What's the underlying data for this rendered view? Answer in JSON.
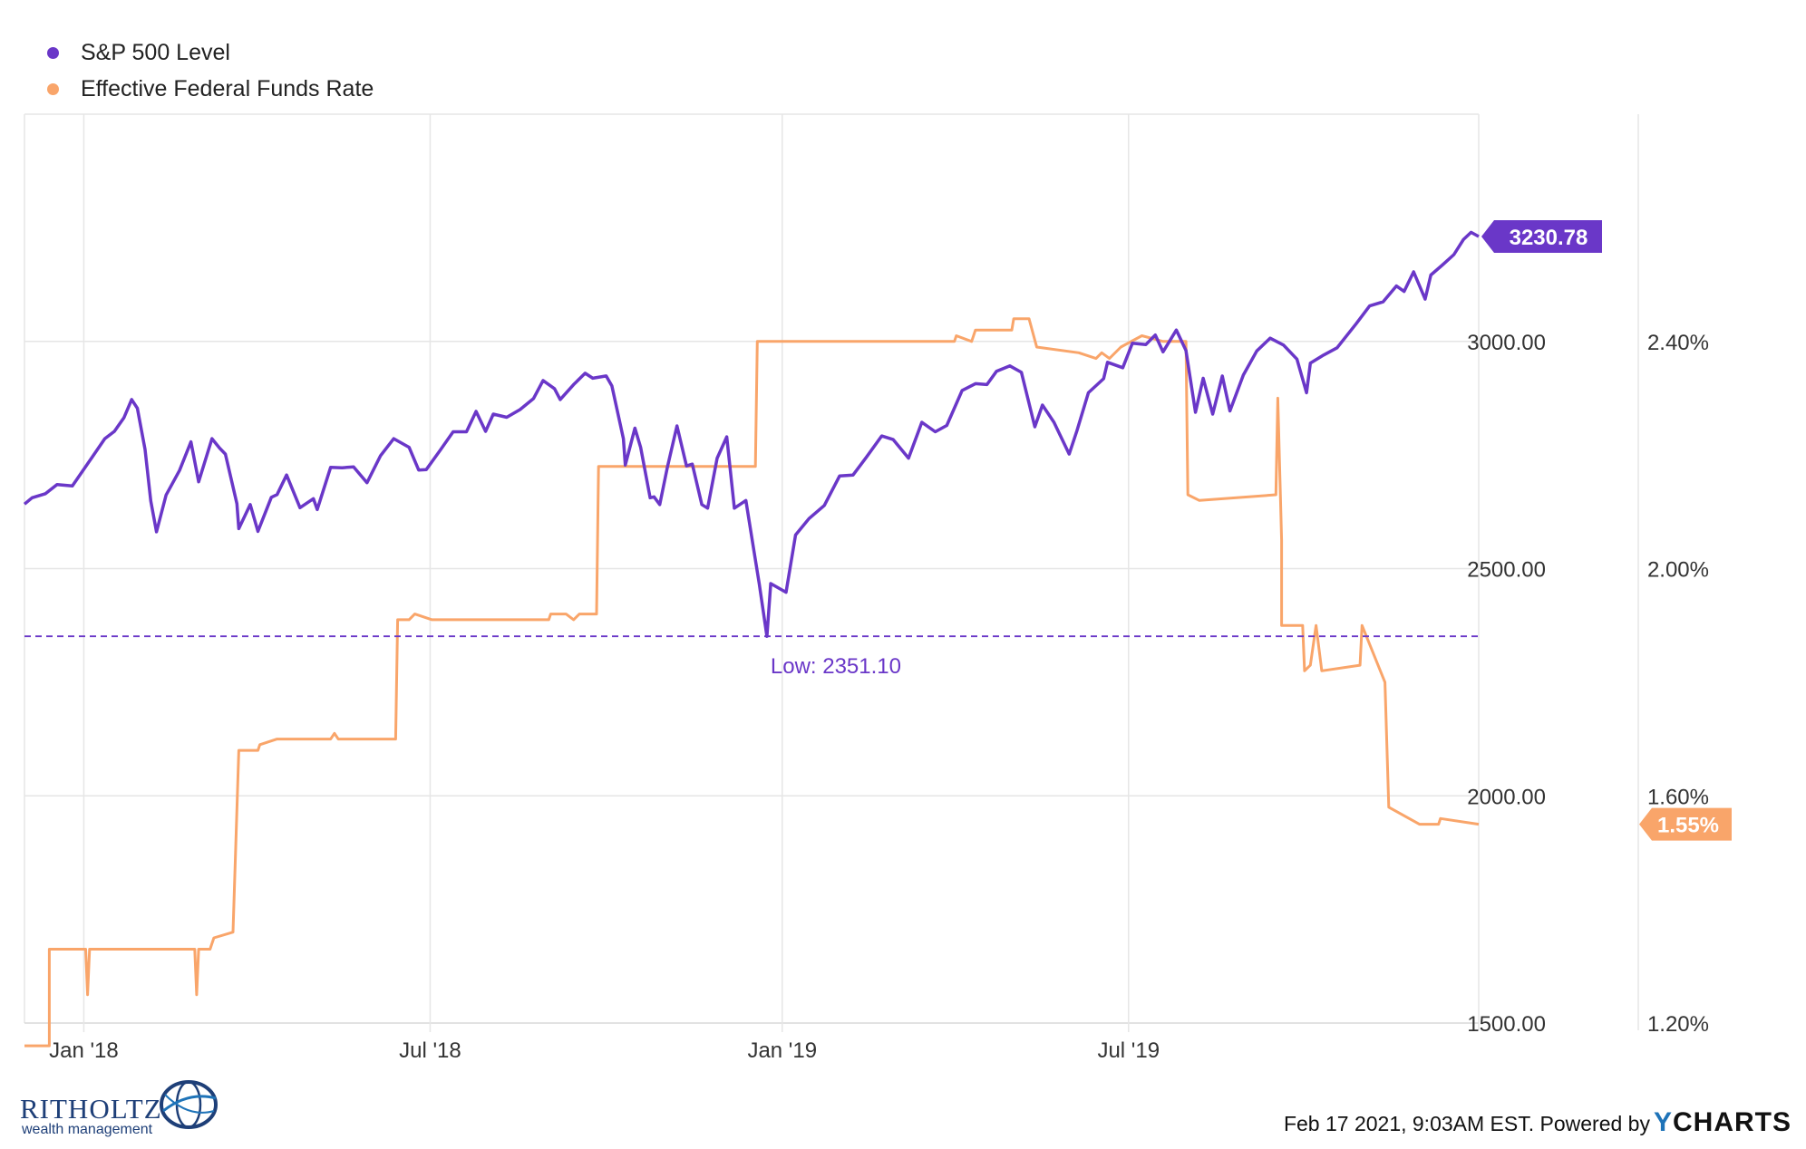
{
  "chart_data": {
    "type": "line",
    "title": "",
    "legend": [
      {
        "name": "S&P 500 Level",
        "color": "#6a37c8"
      },
      {
        "name": "Effective Federal Funds Rate",
        "color": "#f9a56a"
      }
    ],
    "legend_position": "top-left",
    "grid": true,
    "x_ticks": [
      "Jan '18",
      "Jul '18",
      "Jan '19",
      "Jul '19"
    ],
    "x_range": [
      "2017-12-01",
      "2019-12-31"
    ],
    "y_left": {
      "range": [
        1500,
        3500
      ],
      "ticks": [
        "1500.00",
        "2000.00",
        "2500.00",
        "3000.00"
      ]
    },
    "y_right": {
      "range": [
        1.2,
        2.8
      ],
      "ticks": [
        "1.20%",
        "1.60%",
        "2.00%",
        "2.40%"
      ]
    },
    "annotation": {
      "label": "Low: 2351.10",
      "value": 2351.1
    },
    "end_labels": {
      "sp500": "3230.78",
      "fedfunds": "1.55%"
    },
    "series": [
      {
        "name": "S&P 500 Level",
        "axis": "left",
        "points": [
          [
            "2017-12-01",
            2642
          ],
          [
            "2017-12-05",
            2656
          ],
          [
            "2017-12-12",
            2665
          ],
          [
            "2017-12-18",
            2685
          ],
          [
            "2017-12-26",
            2682
          ],
          [
            "2018-01-05",
            2743
          ],
          [
            "2018-01-12",
            2786
          ],
          [
            "2018-01-17",
            2802
          ],
          [
            "2018-01-22",
            2832
          ],
          [
            "2018-01-26",
            2872
          ],
          [
            "2018-01-29",
            2853
          ],
          [
            "2018-02-02",
            2762
          ],
          [
            "2018-02-05",
            2649
          ],
          [
            "2018-02-08",
            2581
          ],
          [
            "2018-02-13",
            2662
          ],
          [
            "2018-02-20",
            2716
          ],
          [
            "2018-02-26",
            2779
          ],
          [
            "2018-03-02",
            2691
          ],
          [
            "2018-03-09",
            2786
          ],
          [
            "2018-03-13",
            2765
          ],
          [
            "2018-03-16",
            2752
          ],
          [
            "2018-03-22",
            2643
          ],
          [
            "2018-03-23",
            2588
          ],
          [
            "2018-03-29",
            2641
          ],
          [
            "2018-04-02",
            2582
          ],
          [
            "2018-04-09",
            2657
          ],
          [
            "2018-04-12",
            2663
          ],
          [
            "2018-04-17",
            2706
          ],
          [
            "2018-04-24",
            2634
          ],
          [
            "2018-05-01",
            2654
          ],
          [
            "2018-05-03",
            2630
          ],
          [
            "2018-05-10",
            2723
          ],
          [
            "2018-05-16",
            2722
          ],
          [
            "2018-05-22",
            2724
          ],
          [
            "2018-05-29",
            2689
          ],
          [
            "2018-06-05",
            2748
          ],
          [
            "2018-06-12",
            2786
          ],
          [
            "2018-06-20",
            2767
          ],
          [
            "2018-06-25",
            2717
          ],
          [
            "2018-06-29",
            2718
          ],
          [
            "2018-07-06",
            2759
          ],
          [
            "2018-07-13",
            2801
          ],
          [
            "2018-07-20",
            2801
          ],
          [
            "2018-07-25",
            2846
          ],
          [
            "2018-07-30",
            2802
          ],
          [
            "2018-08-03",
            2840
          ],
          [
            "2018-08-10",
            2833
          ],
          [
            "2018-08-17",
            2850
          ],
          [
            "2018-08-24",
            2874
          ],
          [
            "2018-08-29",
            2914
          ],
          [
            "2018-09-04",
            2896
          ],
          [
            "2018-09-07",
            2872
          ],
          [
            "2018-09-14",
            2905
          ],
          [
            "2018-09-20",
            2930
          ],
          [
            "2018-09-24",
            2919
          ],
          [
            "2018-10-01",
            2924
          ],
          [
            "2018-10-04",
            2902
          ],
          [
            "2018-10-10",
            2786
          ],
          [
            "2018-10-11",
            2728
          ],
          [
            "2018-10-16",
            2809
          ],
          [
            "2018-10-19",
            2767
          ],
          [
            "2018-10-24",
            2656
          ],
          [
            "2018-10-26",
            2658
          ],
          [
            "2018-10-29",
            2641
          ],
          [
            "2018-11-02",
            2723
          ],
          [
            "2018-11-07",
            2814
          ],
          [
            "2018-11-12",
            2726
          ],
          [
            "2018-11-15",
            2730
          ],
          [
            "2018-11-20",
            2641
          ],
          [
            "2018-11-23",
            2633
          ],
          [
            "2018-11-28",
            2743
          ],
          [
            "2018-12-03",
            2790
          ],
          [
            "2018-12-07",
            2633
          ],
          [
            "2018-12-13",
            2650
          ],
          [
            "2018-12-17",
            2545
          ],
          [
            "2018-12-20",
            2467
          ],
          [
            "2018-12-24",
            2351
          ],
          [
            "2018-12-26",
            2467
          ],
          [
            "2019-01-03",
            2448
          ],
          [
            "2019-01-08",
            2574
          ],
          [
            "2019-01-15",
            2610
          ],
          [
            "2019-01-23",
            2639
          ],
          [
            "2019-01-31",
            2704
          ],
          [
            "2019-02-07",
            2706
          ],
          [
            "2019-02-14",
            2745
          ],
          [
            "2019-02-22",
            2792
          ],
          [
            "2019-02-28",
            2784
          ],
          [
            "2019-03-08",
            2743
          ],
          [
            "2019-03-15",
            2822
          ],
          [
            "2019-03-22",
            2801
          ],
          [
            "2019-03-28",
            2815
          ],
          [
            "2019-04-05",
            2892
          ],
          [
            "2019-04-12",
            2907
          ],
          [
            "2019-04-18",
            2905
          ],
          [
            "2019-04-23",
            2934
          ],
          [
            "2019-04-30",
            2946
          ],
          [
            "2019-05-06",
            2932
          ],
          [
            "2019-05-13",
            2812
          ],
          [
            "2019-05-17",
            2860
          ],
          [
            "2019-05-23",
            2822
          ],
          [
            "2019-05-31",
            2752
          ],
          [
            "2019-06-04",
            2803
          ],
          [
            "2019-06-10",
            2887
          ],
          [
            "2019-06-18",
            2918
          ],
          [
            "2019-06-20",
            2954
          ],
          [
            "2019-06-28",
            2942
          ],
          [
            "2019-07-03",
            2996
          ],
          [
            "2019-07-10",
            2993
          ],
          [
            "2019-07-15",
            3014
          ],
          [
            "2019-07-19",
            2977
          ],
          [
            "2019-07-26",
            3025
          ],
          [
            "2019-07-31",
            2980
          ],
          [
            "2019-08-05",
            2844
          ],
          [
            "2019-08-09",
            2919
          ],
          [
            "2019-08-14",
            2840
          ],
          [
            "2019-08-19",
            2924
          ],
          [
            "2019-08-23",
            2847
          ],
          [
            "2019-08-30",
            2926
          ],
          [
            "2019-09-06",
            2979
          ],
          [
            "2019-09-13",
            3007
          ],
          [
            "2019-09-20",
            2992
          ],
          [
            "2019-09-27",
            2961
          ],
          [
            "2019-10-02",
            2887
          ],
          [
            "2019-10-04",
            2952
          ],
          [
            "2019-10-11",
            2970
          ],
          [
            "2019-10-18",
            2986
          ],
          [
            "2019-10-28",
            3039
          ],
          [
            "2019-11-04",
            3078
          ],
          [
            "2019-11-11",
            3087
          ],
          [
            "2019-11-18",
            3122
          ],
          [
            "2019-11-22",
            3110
          ],
          [
            "2019-11-27",
            3153
          ],
          [
            "2019-12-03",
            3093
          ],
          [
            "2019-12-06",
            3146
          ],
          [
            "2019-12-12",
            3168
          ],
          [
            "2019-12-18",
            3191
          ],
          [
            "2019-12-23",
            3224
          ],
          [
            "2019-12-27",
            3240
          ],
          [
            "2019-12-31",
            3230.78
          ]
        ]
      },
      {
        "name": "Effective Federal Funds Rate",
        "axis": "right",
        "points": [
          [
            "2017-12-01",
            1.16
          ],
          [
            "2017-12-14",
            1.16
          ],
          [
            "2017-12-14",
            1.33
          ],
          [
            "2018-01-02",
            1.33
          ],
          [
            "2018-01-03",
            1.25
          ],
          [
            "2018-01-04",
            1.33
          ],
          [
            "2018-02-28",
            1.33
          ],
          [
            "2018-03-01",
            1.25
          ],
          [
            "2018-03-02",
            1.33
          ],
          [
            "2018-03-08",
            1.33
          ],
          [
            "2018-03-10",
            1.35
          ],
          [
            "2018-03-20",
            1.36
          ],
          [
            "2018-03-23",
            1.68
          ],
          [
            "2018-04-02",
            1.68
          ],
          [
            "2018-04-03",
            1.69
          ],
          [
            "2018-04-12",
            1.7
          ],
          [
            "2018-05-10",
            1.7
          ],
          [
            "2018-05-12",
            1.71
          ],
          [
            "2018-05-14",
            1.7
          ],
          [
            "2018-06-13",
            1.7
          ],
          [
            "2018-06-14",
            1.91
          ],
          [
            "2018-06-20",
            1.91
          ],
          [
            "2018-06-23",
            1.92
          ],
          [
            "2018-07-02",
            1.91
          ],
          [
            "2018-09-01",
            1.91
          ],
          [
            "2018-09-02",
            1.92
          ],
          [
            "2018-09-10",
            1.92
          ],
          [
            "2018-09-14",
            1.91
          ],
          [
            "2018-09-17",
            1.92
          ],
          [
            "2018-09-26",
            1.92
          ],
          [
            "2018-09-27",
            2.18
          ],
          [
            "2018-12-18",
            2.18
          ],
          [
            "2018-12-19",
            2.4
          ],
          [
            "2019-04-01",
            2.4
          ],
          [
            "2019-04-02",
            2.41
          ],
          [
            "2019-04-10",
            2.4
          ],
          [
            "2019-04-12",
            2.42
          ],
          [
            "2019-05-01",
            2.42
          ],
          [
            "2019-05-02",
            2.44
          ],
          [
            "2019-05-10",
            2.44
          ],
          [
            "2019-05-14",
            2.39
          ],
          [
            "2019-06-05",
            2.38
          ],
          [
            "2019-06-14",
            2.37
          ],
          [
            "2019-06-17",
            2.38
          ],
          [
            "2019-06-21",
            2.37
          ],
          [
            "2019-06-27",
            2.39
          ],
          [
            "2019-07-08",
            2.41
          ],
          [
            "2019-07-19",
            2.4
          ],
          [
            "2019-07-31",
            2.4
          ],
          [
            "2019-08-01",
            2.13
          ],
          [
            "2019-08-07",
            2.12
          ],
          [
            "2019-09-16",
            2.13
          ],
          [
            "2019-09-17",
            2.3
          ],
          [
            "2019-09-19",
            2.05
          ],
          [
            "2019-09-19",
            1.9
          ],
          [
            "2019-09-30",
            1.9
          ],
          [
            "2019-10-01",
            1.82
          ],
          [
            "2019-10-04",
            1.83
          ],
          [
            "2019-10-07",
            1.9
          ],
          [
            "2019-10-10",
            1.82
          ],
          [
            "2019-10-30",
            1.83
          ],
          [
            "2019-10-31",
            1.9
          ],
          [
            "2019-11-12",
            1.8
          ],
          [
            "2019-11-14",
            1.58
          ],
          [
            "2019-11-30",
            1.55
          ],
          [
            "2019-12-10",
            1.55
          ],
          [
            "2019-12-11",
            1.56
          ],
          [
            "2019-12-31",
            1.55
          ]
        ]
      }
    ]
  },
  "footer": {
    "brand_name": "RITHOLTZ",
    "brand_sub": "wealth management",
    "timestamp": "Feb 17 2021, 9:03AM EST. Powered by",
    "ycharts_y": "Y",
    "ycharts_rest": "CHARTS"
  }
}
